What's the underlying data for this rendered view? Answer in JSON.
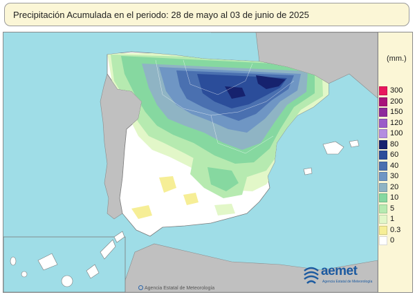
{
  "title": "Precipitación Acumulada en el periodo: 28  de mayo  al 03  de junio de  2025",
  "legend": {
    "unit": "(mm.)",
    "classes": [
      {
        "label": "300",
        "color": "#e8175d"
      },
      {
        "label": "200",
        "color": "#a8127a"
      },
      {
        "label": "150",
        "color": "#8e2a9b"
      },
      {
        "label": "120",
        "color": "#9b5cc8"
      },
      {
        "label": "100",
        "color": "#b48de0"
      },
      {
        "label": "80",
        "color": "#16226e"
      },
      {
        "label": "60",
        "color": "#2b4d9a"
      },
      {
        "label": "40",
        "color": "#4a70b0"
      },
      {
        "label": "30",
        "color": "#6f96c4"
      },
      {
        "label": "20",
        "color": "#8fb4c4"
      },
      {
        "label": "10",
        "color": "#86d8a0"
      },
      {
        "label": "5",
        "color": "#b6eab0"
      },
      {
        "label": "1",
        "color": "#e2f7c8"
      },
      {
        "label": "0.3",
        "color": "#f6ee96"
      },
      {
        "label": "0",
        "color": "#ffffff"
      }
    ]
  },
  "colors": {
    "sea": "#9fdde7",
    "land_outside": "#c0c0c0",
    "land_dry": "#ffffff"
  },
  "credit": "Agencia Estatal de Meteorología",
  "logo": {
    "name": "aemet",
    "subtitle": "Agencia Estatal de Meteorología",
    "icon": "aemet-logo-icon"
  }
}
